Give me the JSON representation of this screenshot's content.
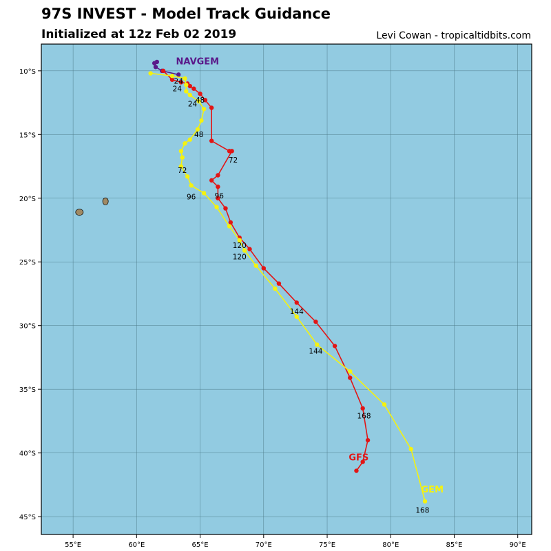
{
  "header": {
    "title": "97S INVEST - Model Track Guidance",
    "subtitle": "Initialized at 12z Feb 02 2019",
    "credit": "Levi Cowan - tropicaltidbits.com"
  },
  "map": {
    "ocean_color": "#92cbe1",
    "land_color": "#a08a64",
    "grid_color": "#4f7d8c",
    "lon_range": [
      52.5,
      91.1
    ],
    "lat_range": [
      -7.9,
      -46.4
    ],
    "lon_ticks": [
      "55°E",
      "60°E",
      "65°E",
      "70°E",
      "75°E",
      "80°E",
      "85°E",
      "90°E"
    ],
    "lat_ticks": [
      "10°S",
      "15°S",
      "20°S",
      "25°S",
      "30°S",
      "35°S",
      "40°S",
      "45°S"
    ],
    "islands": [
      {
        "lon": 55.5,
        "lat": -21.1,
        "rx": 0.3,
        "ry": 0.25
      },
      {
        "lon": 57.55,
        "lat": -20.25,
        "rx": 0.22,
        "ry": 0.28
      }
    ]
  },
  "models": [
    {
      "name": "NAVGEM",
      "color": "#5a1a8a",
      "label_lon": 63.1,
      "label_lat": -9.5,
      "track": [
        [
          63.3,
          -10.3
        ],
        [
          62.0,
          -10.0
        ],
        [
          61.5,
          -9.7
        ],
        [
          61.4,
          -9.4
        ],
        [
          61.6,
          -9.3
        ]
      ]
    },
    {
      "name": "GFS",
      "color": "#e21515",
      "label_lon": 76.7,
      "label_lat": -40.6,
      "track": [
        [
          62.1,
          -10.0
        ],
        [
          62.8,
          -10.7
        ],
        [
          63.5,
          -10.9
        ],
        [
          64.0,
          -11.0
        ],
        [
          64.2,
          -11.2
        ],
        [
          64.5,
          -11.4
        ],
        [
          65.0,
          -11.8
        ],
        [
          65.4,
          -12.3
        ],
        [
          65.9,
          -12.9
        ],
        [
          65.9,
          -15.5
        ],
        [
          67.3,
          -16.3
        ],
        [
          67.5,
          -16.3
        ],
        [
          66.4,
          -18.2
        ],
        [
          65.9,
          -18.6
        ],
        [
          66.4,
          -19.1
        ],
        [
          66.4,
          -20.0
        ],
        [
          67.0,
          -20.8
        ],
        [
          67.4,
          -21.9
        ],
        [
          68.1,
          -23.1
        ],
        [
          68.9,
          -24.0
        ],
        [
          70.0,
          -25.5
        ],
        [
          71.2,
          -26.7
        ],
        [
          72.6,
          -28.2
        ],
        [
          74.1,
          -29.7
        ],
        [
          75.6,
          -31.6
        ],
        [
          76.8,
          -34.1
        ],
        [
          77.8,
          -36.5
        ],
        [
          78.2,
          -39.0
        ],
        [
          77.8,
          -40.7
        ],
        [
          77.3,
          -41.4
        ]
      ],
      "hour_labels": [
        {
          "text": "24",
          "lon": 63.3,
          "lat": -11.0
        },
        {
          "text": "48",
          "lon": 65.0,
          "lat": -12.5
        },
        {
          "text": "72",
          "lon": 67.6,
          "lat": -17.2
        },
        {
          "text": "96",
          "lon": 66.5,
          "lat": -20.0
        },
        {
          "text": "120",
          "lon": 68.1,
          "lat": -23.9
        },
        {
          "text": "144",
          "lon": 72.6,
          "lat": -29.1
        },
        {
          "text": "168",
          "lon": 77.9,
          "lat": -37.3
        }
      ]
    },
    {
      "name": "GEM",
      "color": "#f5f20f",
      "label_lon": 82.4,
      "label_lat": -43.1,
      "track": [
        [
          61.1,
          -10.2
        ],
        [
          62.8,
          -10.4
        ],
        [
          63.8,
          -10.6
        ],
        [
          63.9,
          -11.1
        ],
        [
          63.9,
          -11.6
        ],
        [
          64.2,
          -11.9
        ],
        [
          64.9,
          -12.4
        ],
        [
          65.3,
          -13.0
        ],
        [
          65.1,
          -13.9
        ],
        [
          64.8,
          -14.6
        ],
        [
          64.2,
          -15.4
        ],
        [
          63.8,
          -15.7
        ],
        [
          63.5,
          -16.3
        ],
        [
          63.6,
          -16.8
        ],
        [
          63.5,
          -17.5
        ],
        [
          64.0,
          -18.3
        ],
        [
          64.3,
          -19.0
        ],
        [
          65.3,
          -19.6
        ],
        [
          66.3,
          -20.7
        ],
        [
          67.3,
          -22.2
        ],
        [
          68.1,
          -23.3
        ],
        [
          68.5,
          -24.1
        ],
        [
          69.4,
          -25.3
        ],
        [
          70.9,
          -27.1
        ],
        [
          72.6,
          -29.3
        ],
        [
          74.2,
          -31.5
        ],
        [
          76.8,
          -33.6
        ],
        [
          79.5,
          -36.2
        ],
        [
          81.6,
          -39.7
        ],
        [
          82.7,
          -43.8
        ]
      ],
      "hour_labels": [
        {
          "text": "24",
          "lon": 63.2,
          "lat": -11.6
        },
        {
          "text": "24",
          "lon": 64.4,
          "lat": -12.8
        },
        {
          "text": "48",
          "lon": 64.9,
          "lat": -15.2
        },
        {
          "text": "72",
          "lon": 63.6,
          "lat": -18.0
        },
        {
          "text": "96",
          "lon": 64.3,
          "lat": -20.1
        },
        {
          "text": "120",
          "lon": 68.1,
          "lat": -24.8
        },
        {
          "text": "144",
          "lon": 74.1,
          "lat": -32.2
        },
        {
          "text": "168",
          "lon": 82.5,
          "lat": -44.7
        }
      ]
    }
  ]
}
